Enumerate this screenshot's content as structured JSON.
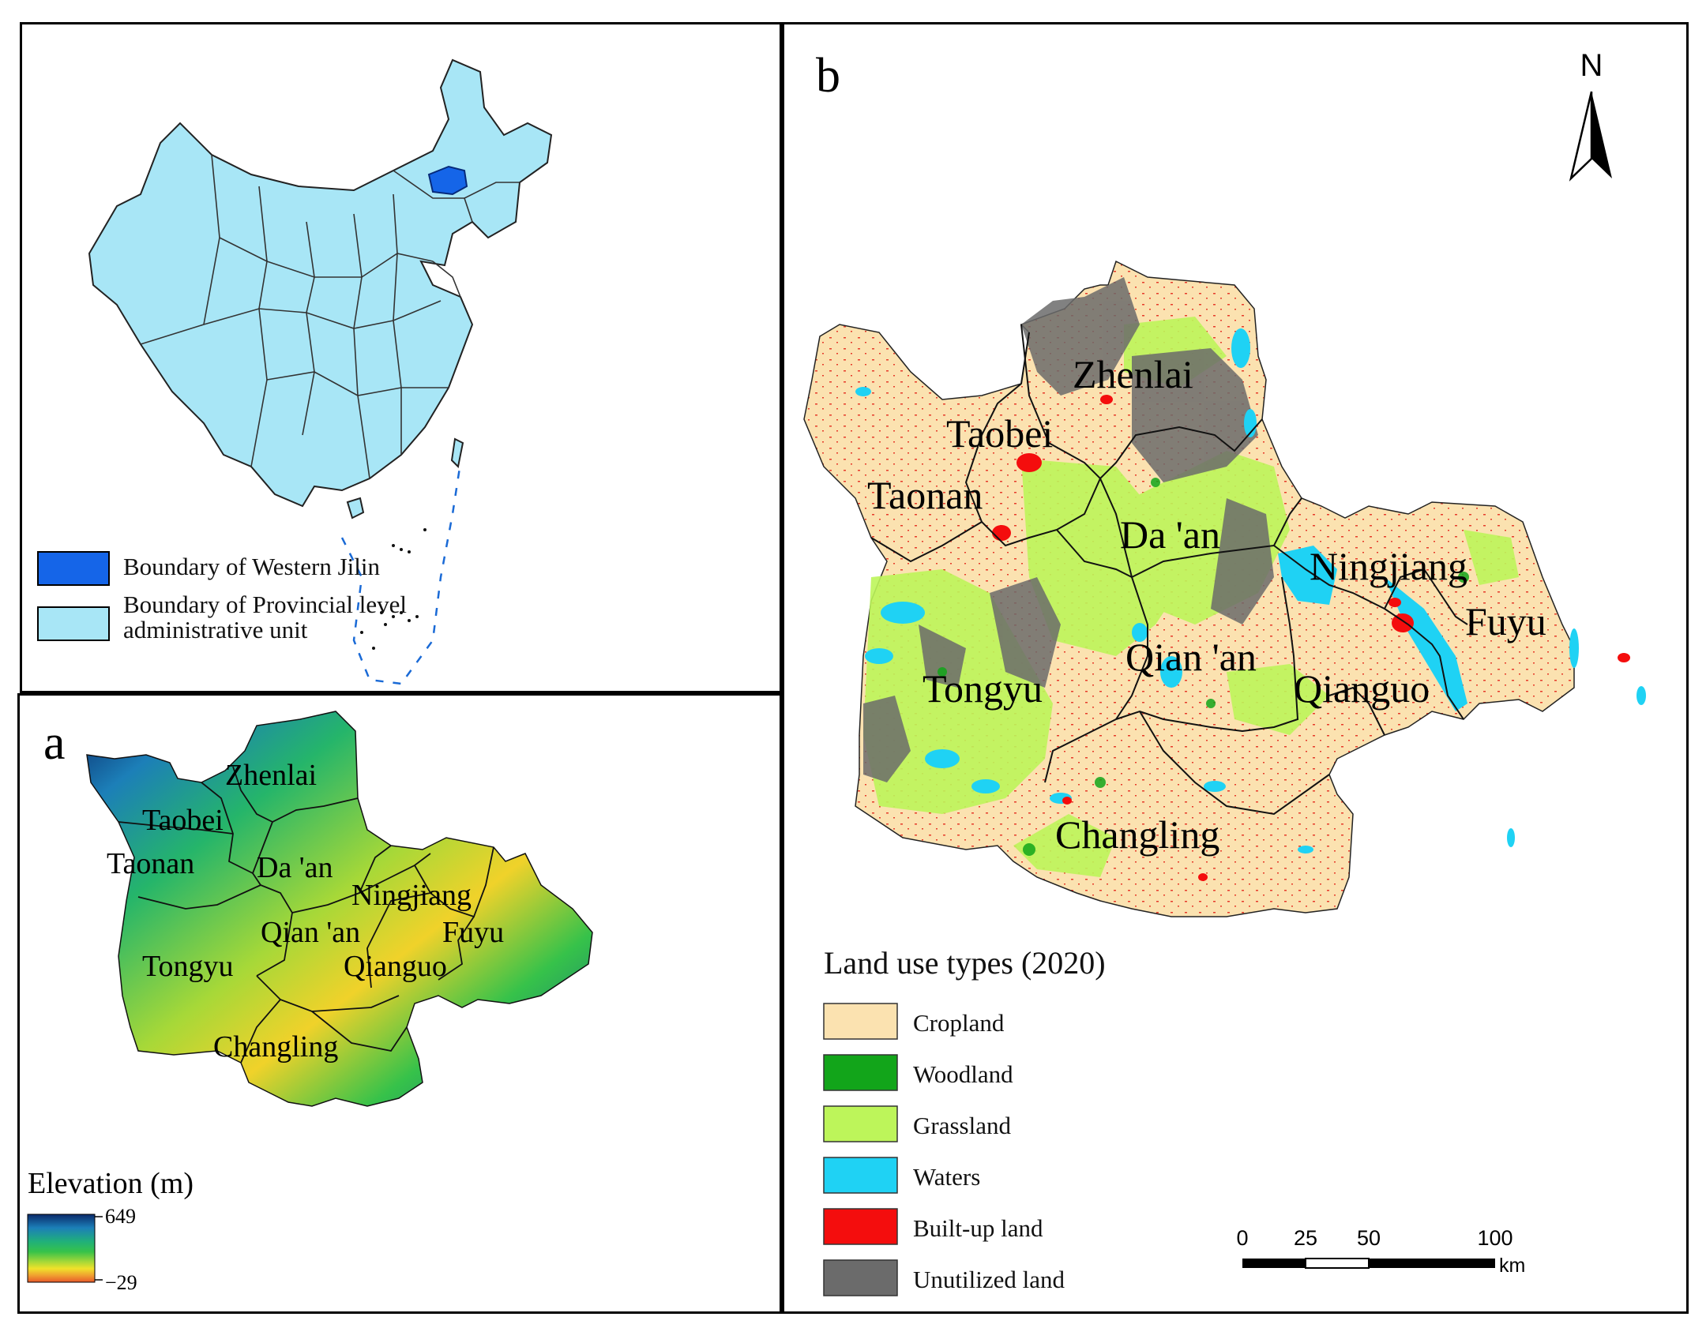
{
  "inset_map": {
    "legend": [
      {
        "label_lines": [
          "Boundary of Western Jilin"
        ],
        "color": "#1565e8"
      },
      {
        "label_lines": [
          "Boundary of Provincial level",
          "administrative unit"
        ],
        "color": "#a8e6f6"
      }
    ]
  },
  "panel_a": {
    "letter": "a",
    "counties": [
      "Zhenlai",
      "Taobei",
      "Taonan",
      "Da 'an",
      "Ningjiang",
      "Qian 'an",
      "Fuyu",
      "Tongyu",
      "Qianguo",
      "Changling"
    ],
    "elevation_legend": {
      "title": "Elevation (m)",
      "max": "649",
      "min": "−29",
      "gradient": [
        "#0a2a6a",
        "#1c7fb8",
        "#20b07a",
        "#36c24a",
        "#a6d838",
        "#f0e22a",
        "#f0a030",
        "#e8582a"
      ]
    }
  },
  "panel_b": {
    "letter": "b",
    "north_label": "N",
    "counties": [
      "Zhenlai",
      "Taobei",
      "Taonan",
      "Da 'an",
      "Ningjiang",
      "Fuyu",
      "Qian 'an",
      "Tongyu",
      "Qianguo",
      "Changling"
    ],
    "land_use_legend": {
      "title": "Land use types (2020)",
      "items": [
        {
          "label": "Cropland",
          "color": "#fbe2b0"
        },
        {
          "label": "Woodland",
          "color": "#12a51a"
        },
        {
          "label": "Grassland",
          "color": "#bdf55a"
        },
        {
          "label": "Waters",
          "color": "#1fd2f4"
        },
        {
          "label": "Built-up land",
          "color": "#f40d0d"
        },
        {
          "label": "Unutilized land",
          "color": "#6b6b6b"
        }
      ]
    },
    "scale_bar": {
      "ticks": [
        "0",
        "25",
        "50",
        "100"
      ],
      "unit": "km"
    }
  }
}
